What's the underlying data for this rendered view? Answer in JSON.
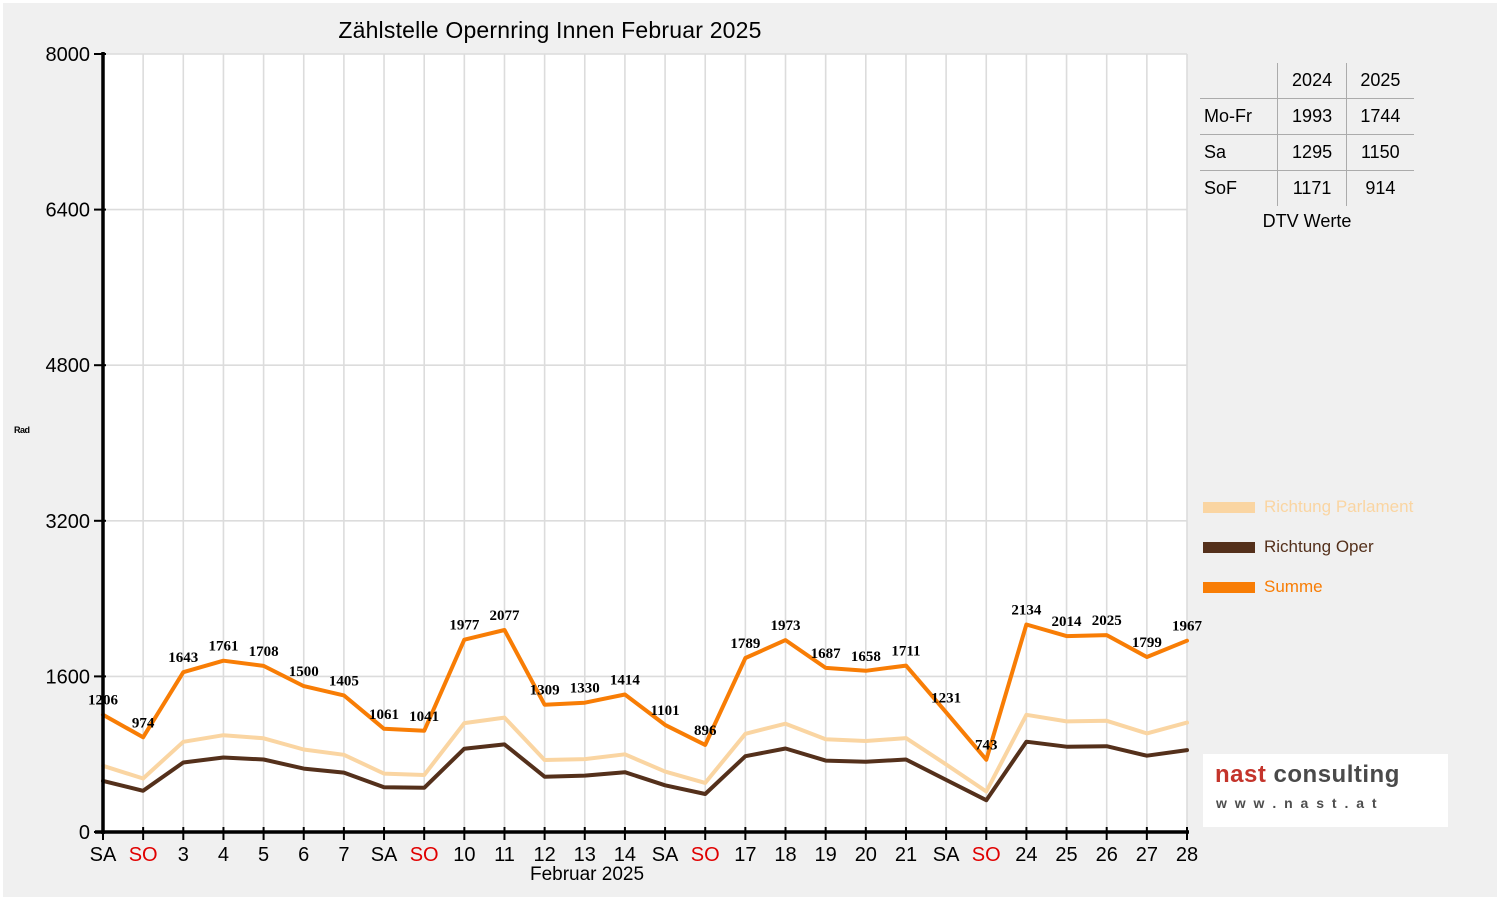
{
  "chart_data": {
    "type": "line",
    "title": "Zählstelle Opernring Innen Februar 2025",
    "xlabel": "Februar 2025",
    "ylabel": "Rad",
    "ylim": [
      0,
      8000
    ],
    "yticks": [
      0,
      1600,
      3200,
      4800,
      6400,
      8000
    ],
    "grid": true,
    "legend_position": "right",
    "categories": [
      "SA",
      "SO",
      "3",
      "4",
      "5",
      "6",
      "7",
      "SA",
      "SO",
      "10",
      "11",
      "12",
      "13",
      "14",
      "SA",
      "SO",
      "17",
      "18",
      "19",
      "20",
      "21",
      "SA",
      "SO",
      "24",
      "25",
      "26",
      "27",
      "28"
    ],
    "sunday_label": "SO",
    "sunday_color": "#E00000",
    "axis_color": "#000000",
    "gridline_color": "#DCDCDC",
    "plot_background": "#FFFFFF",
    "figure_background": "#F0F0F0",
    "series": [
      {
        "name": "Richtung Parlament",
        "color": "#FAD5A2",
        "show_point_labels": false,
        "estimated": true,
        "values": [
          681,
          550,
          928,
          995,
          963,
          848,
          794,
          600,
          586,
          1120,
          1176,
          740,
          750,
          799,
          621,
          505,
          1010,
          1114,
          953,
          936,
          966,
          695,
          416,
          1205,
          1137,
          1143,
          1014,
          1125
        ]
      },
      {
        "name": "Richtung Oper",
        "color": "#54301B",
        "show_point_labels": false,
        "estimated": true,
        "values": [
          525,
          424,
          715,
          766,
          745,
          652,
          611,
          461,
          455,
          857,
          901,
          569,
          580,
          615,
          480,
          391,
          779,
          859,
          734,
          722,
          745,
          536,
          327,
          929,
          877,
          882,
          785,
          842
        ]
      },
      {
        "name": "Summe",
        "color": "#F87D05",
        "show_point_labels": true,
        "estimated": false,
        "values": [
          1206,
          974,
          1643,
          1761,
          1708,
          1500,
          1405,
          1061,
          1041,
          1977,
          2077,
          1309,
          1330,
          1414,
          1101,
          896,
          1789,
          1973,
          1687,
          1658,
          1711,
          1231,
          743,
          2134,
          2014,
          2025,
          1799,
          1967
        ]
      }
    ]
  },
  "side_table": {
    "col_headers": [
      "2024",
      "2025"
    ],
    "rows": [
      {
        "label": "Mo-Fr",
        "values": [
          "1993",
          "1744"
        ]
      },
      {
        "label": "Sa",
        "values": [
          "1295",
          "1150"
        ]
      },
      {
        "label": "SoF",
        "values": [
          "1171",
          "914"
        ]
      }
    ],
    "caption": "DTV Werte"
  },
  "legend": {
    "items": [
      {
        "label": "Richtung Parlament",
        "color": "#FAD5A2"
      },
      {
        "label": "Richtung Oper",
        "color": "#54301B"
      },
      {
        "label": "Summe",
        "color": "#F87D05"
      }
    ]
  },
  "brand": {
    "name_primary": "nast",
    "name_secondary": "consulting",
    "website": "w w w . n a s t . a t"
  }
}
